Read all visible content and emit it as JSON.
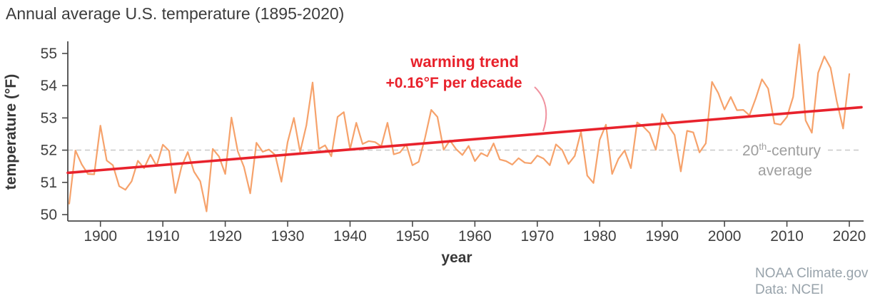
{
  "chart_data": {
    "type": "line",
    "title": "Annual average U.S. temperature (1895-2020)",
    "xlabel": "year",
    "ylabel": "temperature (°F)",
    "xlim": [
      1895,
      2021
    ],
    "ylim": [
      50,
      55.5
    ],
    "grid": false,
    "legend": "none",
    "x_ticks": [
      1900,
      1910,
      1920,
      1930,
      1940,
      1950,
      1960,
      1970,
      1980,
      1990,
      2000,
      2010,
      2020
    ],
    "y_ticks": [
      50,
      51,
      52,
      53,
      54,
      55
    ],
    "series": [
      {
        "name": "annual average temperature",
        "color": "#f6a26b",
        "x": [
          1895,
          1896,
          1897,
          1898,
          1899,
          1900,
          1901,
          1902,
          1903,
          1904,
          1905,
          1906,
          1907,
          1908,
          1909,
          1910,
          1911,
          1912,
          1913,
          1914,
          1915,
          1916,
          1917,
          1918,
          1919,
          1920,
          1921,
          1922,
          1923,
          1924,
          1925,
          1926,
          1927,
          1928,
          1929,
          1930,
          1931,
          1932,
          1933,
          1934,
          1935,
          1936,
          1937,
          1938,
          1939,
          1940,
          1941,
          1942,
          1943,
          1944,
          1945,
          1946,
          1947,
          1948,
          1949,
          1950,
          1951,
          1952,
          1953,
          1954,
          1955,
          1956,
          1957,
          1958,
          1959,
          1960,
          1961,
          1962,
          1963,
          1964,
          1965,
          1966,
          1967,
          1968,
          1969,
          1970,
          1971,
          1972,
          1973,
          1974,
          1975,
          1976,
          1977,
          1978,
          1979,
          1980,
          1981,
          1982,
          1983,
          1984,
          1985,
          1986,
          1987,
          1988,
          1989,
          1990,
          1991,
          1992,
          1993,
          1994,
          1995,
          1996,
          1997,
          1998,
          1999,
          2000,
          2001,
          2002,
          2003,
          2004,
          2005,
          2006,
          2007,
          2008,
          2009,
          2010,
          2011,
          2012,
          2013,
          2014,
          2015,
          2016,
          2017,
          2018,
          2019,
          2020
        ],
        "values": [
          50.34,
          51.99,
          51.56,
          51.26,
          51.25,
          52.76,
          51.68,
          51.53,
          50.88,
          50.77,
          51.03,
          51.67,
          51.44,
          51.86,
          51.51,
          52.17,
          51.98,
          50.67,
          51.49,
          51.94,
          51.33,
          51.03,
          50.1,
          52.04,
          51.8,
          51.26,
          53.01,
          51.97,
          51.48,
          50.66,
          52.23,
          51.95,
          52.02,
          51.85,
          51.02,
          52.25,
          53.0,
          51.94,
          52.77,
          54.1,
          52.04,
          52.15,
          51.81,
          53.03,
          53.18,
          52.03,
          52.85,
          52.19,
          52.28,
          52.25,
          52.12,
          52.85,
          51.87,
          51.93,
          52.18,
          51.53,
          51.64,
          52.37,
          53.25,
          53.03,
          52.01,
          52.3,
          52.03,
          51.85,
          52.13,
          51.66,
          51.91,
          51.81,
          52.21,
          51.71,
          51.66,
          51.55,
          51.75,
          51.61,
          51.59,
          51.83,
          51.74,
          51.53,
          52.18,
          52.0,
          51.57,
          51.82,
          52.57,
          51.21,
          50.98,
          52.32,
          52.79,
          51.26,
          51.73,
          51.99,
          51.44,
          52.86,
          52.73,
          52.53,
          52.01,
          53.12,
          52.76,
          52.47,
          51.34,
          52.6,
          52.55,
          51.93,
          52.21,
          54.12,
          53.77,
          53.26,
          53.65,
          53.24,
          53.25,
          53.08,
          53.6,
          54.2,
          53.91,
          52.83,
          52.79,
          53.03,
          53.65,
          55.28,
          52.92,
          52.54,
          54.4,
          54.91,
          54.55,
          53.51,
          52.67,
          54.36
        ]
      }
    ],
    "trend": {
      "name": "warming trend",
      "color": "#e8222c",
      "rate_per_decade_f": 0.16,
      "start_year": 1895,
      "start_value": 51.3,
      "end_year": 2020,
      "end_value": 53.3
    },
    "reference_line": {
      "name": "20th-century average",
      "value": 52.0,
      "color": "#cccccc",
      "style": "dashed"
    }
  },
  "annotations": {
    "warming_trend_line1": "warming trend",
    "warming_trend_line2": "+0.16°F per decade",
    "century_avg_num": "20",
    "century_avg_sup": "th",
    "century_avg_rest": "-century",
    "century_avg_line2": "average"
  },
  "attribution": {
    "line1": "NOAA Climate.gov",
    "line2": "Data: NCEI"
  },
  "colors": {
    "annual_line": "#f6a26b",
    "trend_line": "#e8222c",
    "reference_line": "#cccccc",
    "leader_line": "#f0929f",
    "text_dark": "#3c3c3c",
    "text_gray": "#9e9e9e",
    "attribution_gray": "#98a3ab"
  }
}
